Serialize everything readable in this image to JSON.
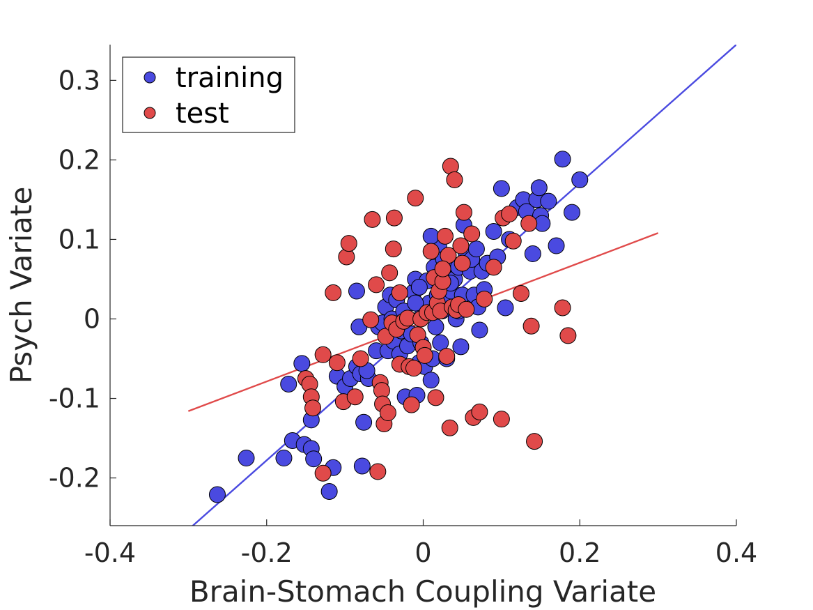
{
  "chart_data": {
    "type": "scatter",
    "title": "",
    "xlabel": "Brain-Stomach Coupling Variate",
    "ylabel": "Psych Variate",
    "xlim": [
      -0.4,
      0.4
    ],
    "ylim": [
      -0.26,
      0.345
    ],
    "xticks": [
      -0.4,
      -0.2,
      0,
      0.2,
      0.4
    ],
    "xtick_labels": [
      "-0.4",
      "-0.2",
      "0",
      "0.2",
      "0.4"
    ],
    "yticks": [
      -0.2,
      -0.1,
      0,
      0.1,
      0.2,
      0.3
    ],
    "ytick_labels": [
      "-0.2",
      "-0.1",
      "0",
      "0.1",
      "0.2",
      "0.3"
    ],
    "grid": false,
    "legend": {
      "placement": "top-left",
      "entries": [
        "training",
        "test"
      ]
    },
    "series": [
      {
        "name": "training",
        "color": "#4a4ae0",
        "points": [
          [
            -0.263,
            -0.221
          ],
          [
            -0.226,
            -0.175
          ],
          [
            -0.178,
            -0.175
          ],
          [
            -0.172,
            -0.082
          ],
          [
            -0.167,
            -0.153
          ],
          [
            -0.155,
            -0.056
          ],
          [
            -0.152,
            -0.158
          ],
          [
            -0.143,
            -0.163
          ],
          [
            -0.14,
            -0.176
          ],
          [
            -0.143,
            -0.127
          ],
          [
            -0.12,
            -0.217
          ],
          [
            -0.115,
            -0.187
          ],
          [
            -0.11,
            -0.072
          ],
          [
            -0.1,
            -0.085
          ],
          [
            -0.093,
            -0.075
          ],
          [
            -0.085,
            -0.06
          ],
          [
            -0.082,
            -0.01
          ],
          [
            -0.085,
            0.035
          ],
          [
            -0.08,
            -0.069
          ],
          [
            -0.076,
            -0.13
          ],
          [
            -0.078,
            -0.185
          ],
          [
            -0.07,
            -0.075
          ],
          [
            -0.072,
            -0.065
          ],
          [
            -0.06,
            -0.04
          ],
          [
            -0.057,
            -0.01
          ],
          [
            -0.052,
            -0.005
          ],
          [
            -0.048,
            0.015
          ],
          [
            -0.045,
            -0.04
          ],
          [
            -0.042,
            0.03
          ],
          [
            -0.04,
            0.0
          ],
          [
            -0.038,
            -0.028
          ],
          [
            -0.034,
            0.024
          ],
          [
            -0.03,
            -0.044
          ],
          [
            -0.028,
            -0.015
          ],
          [
            -0.025,
            0.01
          ],
          [
            -0.023,
            -0.098
          ],
          [
            -0.02,
            -0.034
          ],
          [
            -0.015,
            -0.019
          ],
          [
            -0.012,
            0.034
          ],
          [
            -0.01,
            0.05
          ],
          [
            -0.008,
            -0.096
          ],
          [
            -0.005,
            -0.055
          ],
          [
            -0.003,
            -0.03
          ],
          [
            -0.001,
            0.005
          ],
          [
            0.002,
            -0.06
          ],
          [
            0.005,
            0.048
          ],
          [
            0.008,
            0.02
          ],
          [
            0.01,
            -0.077
          ],
          [
            0.012,
            -0.05
          ],
          [
            0.014,
            0.065
          ],
          [
            0.016,
            -0.01
          ],
          [
            0.018,
            0.03
          ],
          [
            0.02,
            0.09
          ],
          [
            0.022,
            -0.03
          ],
          [
            0.024,
            0.01
          ],
          [
            0.026,
            0.075
          ],
          [
            0.028,
            0.055
          ],
          [
            0.03,
            -0.05
          ],
          [
            0.032,
            0.02
          ],
          [
            0.035,
            0.07
          ],
          [
            0.036,
            0.035
          ],
          [
            0.038,
            0.015
          ],
          [
            0.04,
            0.05
          ],
          [
            0.042,
            0.0
          ],
          [
            0.045,
            0.065
          ],
          [
            0.048,
            -0.035
          ],
          [
            0.05,
            0.03
          ],
          [
            0.052,
            0.118
          ],
          [
            0.055,
            0.08
          ],
          [
            0.058,
            0.07
          ],
          [
            0.06,
            0.06
          ],
          [
            0.062,
            0.075
          ],
          [
            0.065,
            0.03
          ],
          [
            0.068,
            0.088
          ],
          [
            0.07,
            0.015
          ],
          [
            0.072,
            -0.014
          ],
          [
            0.075,
            0.06
          ],
          [
            0.078,
            0.037
          ],
          [
            0.082,
            0.07
          ],
          [
            0.09,
            0.11
          ],
          [
            0.095,
            0.078
          ],
          [
            0.1,
            0.164
          ],
          [
            0.105,
            0.014
          ],
          [
            0.11,
            0.1
          ],
          [
            0.12,
            0.14
          ],
          [
            0.128,
            0.15
          ],
          [
            0.132,
            0.135
          ],
          [
            0.14,
            0.082
          ],
          [
            0.145,
            0.15
          ],
          [
            0.148,
            0.165
          ],
          [
            0.15,
            0.13
          ],
          [
            0.152,
            0.12
          ],
          [
            0.16,
            0.148
          ],
          [
            0.17,
            0.092
          ],
          [
            0.178,
            0.201
          ],
          [
            0.19,
            0.134
          ],
          [
            0.2,
            0.175
          ],
          [
            0.01,
            0.104
          ],
          [
            -0.005,
            0.04
          ],
          [
            0.035,
            0.045
          ],
          [
            0.045,
            0.01
          ],
          [
            -0.01,
            0.02
          ]
        ]
      },
      {
        "name": "test",
        "color": "#e04a4a",
        "points": [
          [
            -0.15,
            -0.075
          ],
          [
            -0.145,
            -0.082
          ],
          [
            -0.143,
            -0.098
          ],
          [
            -0.141,
            -0.112
          ],
          [
            -0.128,
            -0.045
          ],
          [
            -0.128,
            -0.194
          ],
          [
            -0.115,
            0.033
          ],
          [
            -0.11,
            -0.055
          ],
          [
            -0.102,
            -0.104
          ],
          [
            -0.098,
            0.078
          ],
          [
            -0.095,
            0.095
          ],
          [
            -0.087,
            -0.098
          ],
          [
            -0.08,
            -0.05
          ],
          [
            -0.067,
            -0.001
          ],
          [
            -0.065,
            0.125
          ],
          [
            -0.06,
            0.043
          ],
          [
            -0.058,
            -0.192
          ],
          [
            -0.055,
            -0.08
          ],
          [
            -0.053,
            -0.09
          ],
          [
            -0.052,
            -0.107
          ],
          [
            -0.05,
            -0.132
          ],
          [
            -0.048,
            -0.022
          ],
          [
            -0.045,
            -0.118
          ],
          [
            -0.043,
            0.058
          ],
          [
            -0.04,
            -0.005
          ],
          [
            -0.038,
            0.088
          ],
          [
            -0.037,
            0.127
          ],
          [
            -0.034,
            -0.013
          ],
          [
            -0.03,
            0.033
          ],
          [
            -0.03,
            -0.057
          ],
          [
            -0.025,
            -0.003
          ],
          [
            -0.02,
            0.001
          ],
          [
            -0.018,
            -0.06
          ],
          [
            -0.015,
            -0.108
          ],
          [
            -0.012,
            -0.062
          ],
          [
            -0.01,
            0.152
          ],
          [
            -0.007,
            -0.02
          ],
          [
            -0.003,
            0.0
          ],
          [
            0.0,
            -0.036
          ],
          [
            0.002,
            -0.046
          ],
          [
            0.005,
            0.008
          ],
          [
            0.01,
            0.085
          ],
          [
            0.012,
            0.008
          ],
          [
            0.014,
            0.052
          ],
          [
            0.016,
            -0.099
          ],
          [
            0.018,
            0.02
          ],
          [
            0.02,
            0.035
          ],
          [
            0.022,
            0.01
          ],
          [
            0.025,
            0.047
          ],
          [
            0.028,
            0.104
          ],
          [
            0.03,
            -0.047
          ],
          [
            0.032,
            0.08
          ],
          [
            0.034,
            -0.137
          ],
          [
            0.035,
            0.192
          ],
          [
            0.037,
            0.015
          ],
          [
            0.04,
            0.175
          ],
          [
            0.042,
            0.011
          ],
          [
            0.045,
            0.018
          ],
          [
            0.048,
            0.092
          ],
          [
            0.05,
            0.07
          ],
          [
            0.052,
            0.134
          ],
          [
            0.055,
            0.012
          ],
          [
            0.062,
            0.107
          ],
          [
            0.064,
            -0.124
          ],
          [
            0.072,
            -0.117
          ],
          [
            0.078,
            0.025
          ],
          [
            0.09,
            0.065
          ],
          [
            0.1,
            -0.126
          ],
          [
            0.102,
            0.127
          ],
          [
            0.11,
            0.132
          ],
          [
            0.115,
            0.098
          ],
          [
            0.125,
            0.032
          ],
          [
            0.135,
            0.12
          ],
          [
            0.138,
            -0.009
          ],
          [
            0.142,
            -0.154
          ],
          [
            0.178,
            0.014
          ],
          [
            0.185,
            -0.021
          ],
          [
            0.025,
            0.063
          ]
        ]
      }
    ],
    "fit_lines": [
      {
        "series": "training",
        "color": "#4a4ae0",
        "x": [
          -0.3,
          0.4
        ],
        "y": [
          -0.265,
          0.345
        ]
      },
      {
        "series": "test",
        "color": "#e04a4a",
        "x": [
          -0.3,
          0.3
        ],
        "y": [
          -0.116,
          0.108
        ]
      }
    ]
  }
}
